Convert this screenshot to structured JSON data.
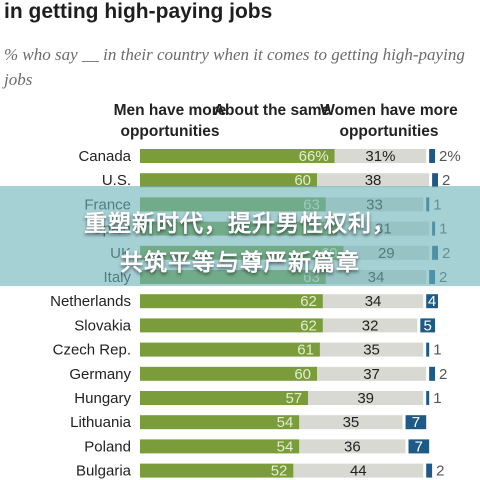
{
  "header": {
    "title": "in getting high-paying jobs",
    "subtitle": "% who say __ in their country when it comes to getting high-paying jobs"
  },
  "overlay": {
    "line1": "重塑新时代，提升男性权利，",
    "line2": "共筑平等与尊严新篇章"
  },
  "chart_data": {
    "type": "bar",
    "stacked": true,
    "orientation": "horizontal",
    "column_headers": [
      "Men have more opportunities",
      "About the same",
      "Women have more opportunities"
    ],
    "categories": [
      "Canada",
      "U.S.",
      "France",
      "Spain",
      "UK",
      "Italy",
      "Netherlands",
      "Slovakia",
      "Czech Rep.",
      "Germany",
      "Hungary",
      "Lithuania",
      "Poland",
      "Bulgaria"
    ],
    "series": [
      {
        "name": "Men have more opportunities",
        "color": "#7a9c3a",
        "values": [
          66,
          60,
          63,
          67,
          69,
          63,
          62,
          62,
          61,
          60,
          57,
          54,
          54,
          52
        ]
      },
      {
        "name": "About the same",
        "color": "#d9d9d4",
        "values": [
          31,
          38,
          33,
          31,
          29,
          34,
          34,
          32,
          35,
          37,
          39,
          35,
          36,
          44
        ]
      },
      {
        "name": "Women have more opportunities",
        "color": "#1e5a87",
        "values": [
          2,
          2,
          1,
          1,
          2,
          2,
          4,
          5,
          1,
          2,
          1,
          7,
          7,
          2
        ]
      }
    ],
    "value_labels": [
      [
        "66%",
        "31%",
        "2%"
      ],
      [
        "60",
        "38",
        "2"
      ],
      [
        "63",
        "33",
        "1"
      ],
      [
        "67",
        "31",
        "1"
      ],
      [
        "69",
        "29",
        "2"
      ],
      [
        "63",
        "34",
        "2"
      ],
      [
        "62",
        "34",
        "4"
      ],
      [
        "62",
        "32",
        "5"
      ],
      [
        "61",
        "35",
        "1"
      ],
      [
        "60",
        "37",
        "2"
      ],
      [
        "57",
        "39",
        "1"
      ],
      [
        "54",
        "35",
        "7"
      ],
      [
        "54",
        "36",
        "7"
      ],
      [
        "52",
        "44",
        "2"
      ]
    ],
    "label_color_on_green": "#e3ecd0",
    "label_color_on_grey": "#222222"
  }
}
